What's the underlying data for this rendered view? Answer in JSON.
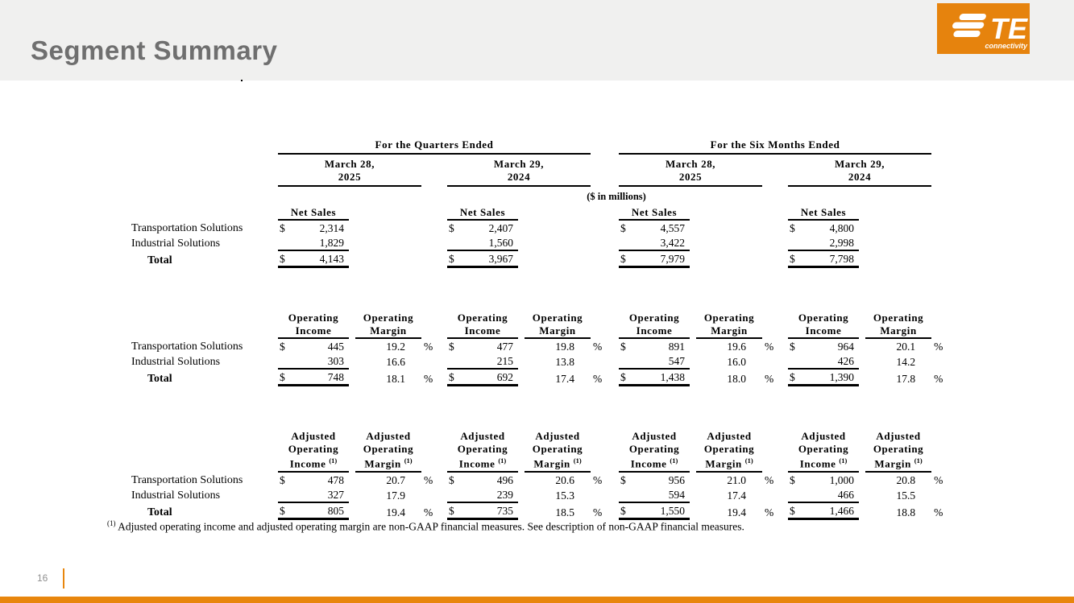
{
  "slide": {
    "title": "Segment Summary",
    "page_number": "16"
  },
  "logo": {
    "te_text": "TE",
    "subtext": "connectivity"
  },
  "colors": {
    "accent_orange": "#E8860D",
    "logo_orange": "#E6830D",
    "header_band_gray": "#F0F0EF",
    "title_gray": "#6F6F6F"
  },
  "footnote": {
    "marker": "(1)",
    "text": "Adjusted operating income and adjusted operating margin are non-GAAP financial measures. See description of non-GAAP financial measures."
  },
  "table": {
    "currency": "$",
    "percent": "%",
    "units_note": "($ in millions)",
    "period_groups": [
      {
        "label": "For the Quarters Ended",
        "dates": [
          {
            "line1": "March 28,",
            "line2": "2025"
          },
          {
            "line1": "March 29,",
            "line2": "2024"
          }
        ]
      },
      {
        "label": "For the Six Months Ended",
        "dates": [
          {
            "line1": "March 28,",
            "line2": "2025"
          },
          {
            "line1": "March 29,",
            "line2": "2024"
          }
        ]
      }
    ],
    "sections": [
      {
        "id": "net-sales",
        "income_lines": [
          "Net Sales"
        ],
        "margin_lines": null,
        "header_sup": null,
        "rows": [
          {
            "label": "Transportation Solutions",
            "total": false,
            "dollar": true,
            "pct": false,
            "rule": null,
            "amounts": [
              "2,314",
              "2,407",
              "4,557",
              "4,800"
            ],
            "margins": null
          },
          {
            "label": "Industrial Solutions",
            "total": false,
            "dollar": false,
            "pct": false,
            "rule": "thin",
            "amounts": [
              "1,829",
              "1,560",
              "3,422",
              "2,998"
            ],
            "margins": null
          },
          {
            "label": "Total",
            "total": true,
            "dollar": true,
            "pct": false,
            "rule": "thick",
            "amounts": [
              "4,143",
              "3,967",
              "7,979",
              "7,798"
            ],
            "margins": null
          }
        ]
      },
      {
        "id": "operating",
        "income_lines": [
          "Operating",
          "Income"
        ],
        "margin_lines": [
          "Operating",
          "Margin"
        ],
        "header_sup": null,
        "rows": [
          {
            "label": "Transportation Solutions",
            "total": false,
            "dollar": true,
            "pct": true,
            "rule": null,
            "amounts": [
              "445",
              "477",
              "891",
              "964"
            ],
            "margins": [
              "19.2",
              "19.8",
              "19.6",
              "20.1"
            ]
          },
          {
            "label": "Industrial Solutions",
            "total": false,
            "dollar": false,
            "pct": false,
            "rule": "thin",
            "amounts": [
              "303",
              "215",
              "547",
              "426"
            ],
            "margins": [
              "16.6",
              "13.8",
              "16.0",
              "14.2"
            ]
          },
          {
            "label": "Total",
            "total": true,
            "dollar": true,
            "pct": true,
            "rule": "thick",
            "amounts": [
              "748",
              "692",
              "1,438",
              "1,390"
            ],
            "margins": [
              "18.1",
              "17.4",
              "18.0",
              "17.8"
            ]
          }
        ]
      },
      {
        "id": "adjusted",
        "income_lines": [
          "Adjusted",
          "Operating",
          "Income"
        ],
        "margin_lines": [
          "Adjusted",
          "Operating",
          "Margin"
        ],
        "header_sup": "(1)",
        "rows": [
          {
            "label": "Transportation Solutions",
            "total": false,
            "dollar": true,
            "pct": true,
            "rule": null,
            "amounts": [
              "478",
              "496",
              "956",
              "1,000"
            ],
            "margins": [
              "20.7",
              "20.6",
              "21.0",
              "20.8"
            ]
          },
          {
            "label": "Industrial Solutions",
            "total": false,
            "dollar": false,
            "pct": false,
            "rule": "thin",
            "amounts": [
              "327",
              "239",
              "594",
              "466"
            ],
            "margins": [
              "17.9",
              "15.3",
              "17.4",
              "15.5"
            ]
          },
          {
            "label": "Total",
            "total": true,
            "dollar": true,
            "pct": true,
            "rule": "thick",
            "amounts": [
              "805",
              "735",
              "1,550",
              "1,466"
            ],
            "margins": [
              "19.4",
              "18.5",
              "19.4",
              "18.8"
            ]
          }
        ]
      }
    ]
  }
}
